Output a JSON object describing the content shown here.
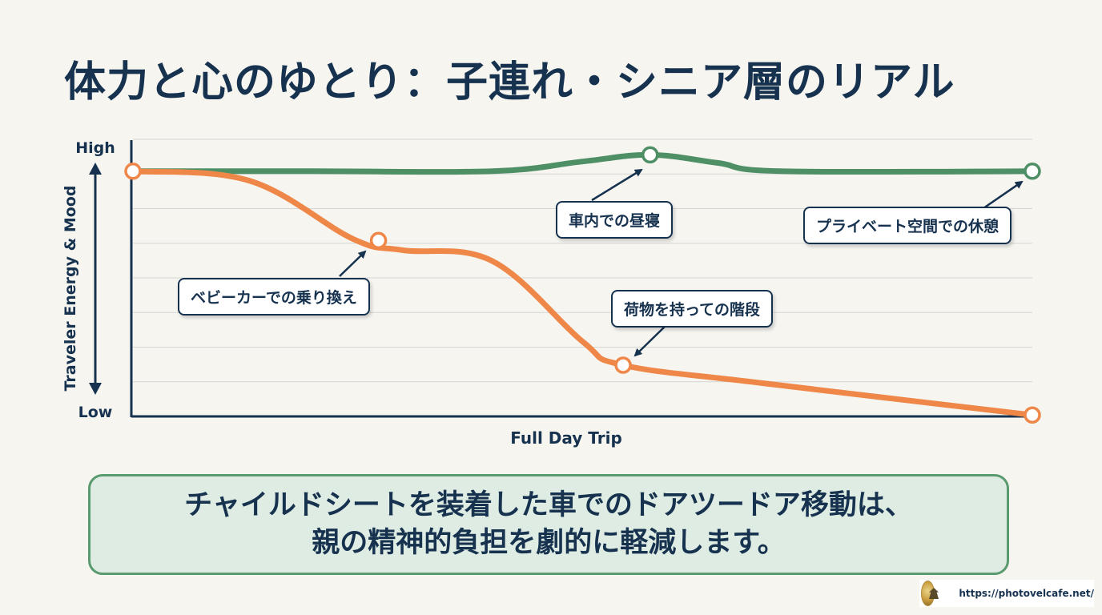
{
  "title": "体力と心のゆとり：子連れ・シニア層のリアル",
  "colors": {
    "navy": "#16324f",
    "orange": "#ee8748",
    "green": "#4f8f65",
    "grid": "#d4d6d6"
  },
  "chart_data": {
    "type": "line",
    "xlabel": "Full Day Trip",
    "ylabel": "Traveler Energy & Mood",
    "y_tick_labels": {
      "high": "High",
      "low": "Low"
    },
    "ylim": [
      0,
      100
    ],
    "grid": true,
    "x_range": [
      0,
      100
    ],
    "series": [
      {
        "color": "#4f8f65",
        "points": [
          [
            0,
            88.5
          ],
          [
            20,
            88.5
          ],
          [
            40,
            88.5
          ],
          [
            50,
            92
          ],
          [
            57.5,
            94.4
          ],
          [
            65,
            91.5
          ],
          [
            72,
            88.5
          ],
          [
            100,
            88.5
          ]
        ],
        "markers": [
          [
            57.5,
            94.4
          ],
          [
            100,
            88.5
          ]
        ]
      },
      {
        "color": "#ee8748",
        "points": [
          [
            0,
            88.5
          ],
          [
            13,
            85
          ],
          [
            24.5,
            64
          ],
          [
            30,
            60
          ],
          [
            40,
            56
          ],
          [
            50,
            27
          ],
          [
            54.5,
            18.5
          ],
          [
            70,
            12
          ],
          [
            100,
            0.5
          ]
        ],
        "markers": [
          [
            0,
            88.5
          ],
          [
            27.3,
            63.5
          ],
          [
            54.5,
            18.5
          ],
          [
            100,
            0.5
          ]
        ]
      }
    ],
    "annotations": [
      {
        "text": "車内での昼寝"
      },
      {
        "text": "プライベート空間での休憩"
      },
      {
        "text": "ベビーカーでの乗り換え"
      },
      {
        "text": "荷物を持っての階段"
      }
    ]
  },
  "summary": {
    "line1": "チャイルドシートを装着した車でのドアツードア移動は、",
    "line2": "親の精神的負担を劇的に軽減します。"
  },
  "footer": {
    "url": "https://photovelcafe.net/"
  }
}
